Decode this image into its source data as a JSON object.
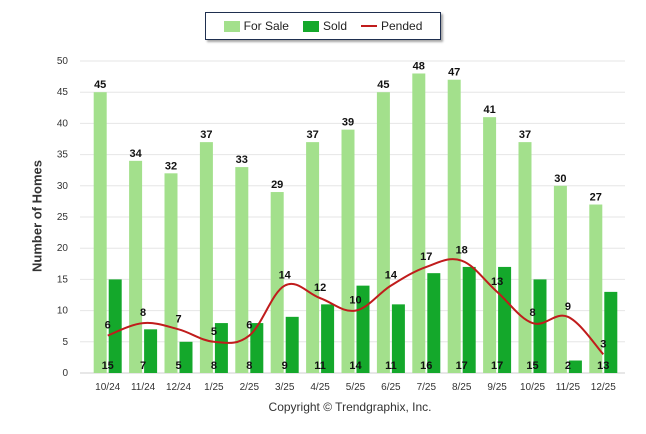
{
  "legend": {
    "for_sale": "For Sale",
    "sold": "Sold",
    "pended": "Pended"
  },
  "footer": "Copyright © Trendgraphix, Inc.",
  "colors": {
    "for_sale": "#a3e08c",
    "sold": "#14a82b",
    "pended": "#c01c1c",
    "grid": "#e6e6e6"
  },
  "chart_data": {
    "type": "bar",
    "categories": [
      "10/24",
      "11/24",
      "12/24",
      "1/25",
      "2/25",
      "3/25",
      "4/25",
      "5/25",
      "6/25",
      "7/25",
      "8/25",
      "9/25",
      "10/25",
      "11/25",
      "12/25"
    ],
    "series": [
      {
        "name": "For Sale",
        "kind": "bar",
        "values": [
          45,
          34,
          32,
          37,
          33,
          29,
          37,
          39,
          45,
          48,
          47,
          41,
          37,
          30,
          27
        ]
      },
      {
        "name": "Sold",
        "kind": "bar",
        "values": [
          15,
          7,
          5,
          8,
          8,
          9,
          11,
          14,
          11,
          16,
          17,
          17,
          15,
          2,
          13
        ]
      },
      {
        "name": "Pended",
        "kind": "line",
        "values": [
          6,
          8,
          7,
          5,
          6,
          14,
          12,
          10,
          14,
          17,
          18,
          13,
          8,
          9,
          3
        ]
      }
    ],
    "ylabel": "Number of Homes",
    "xlabel": "",
    "ylim": [
      0,
      50
    ],
    "yticks": [
      0,
      5,
      10,
      15,
      20,
      25,
      30,
      35,
      40,
      45,
      50
    ],
    "grid": true,
    "legend_position": "top-center"
  }
}
